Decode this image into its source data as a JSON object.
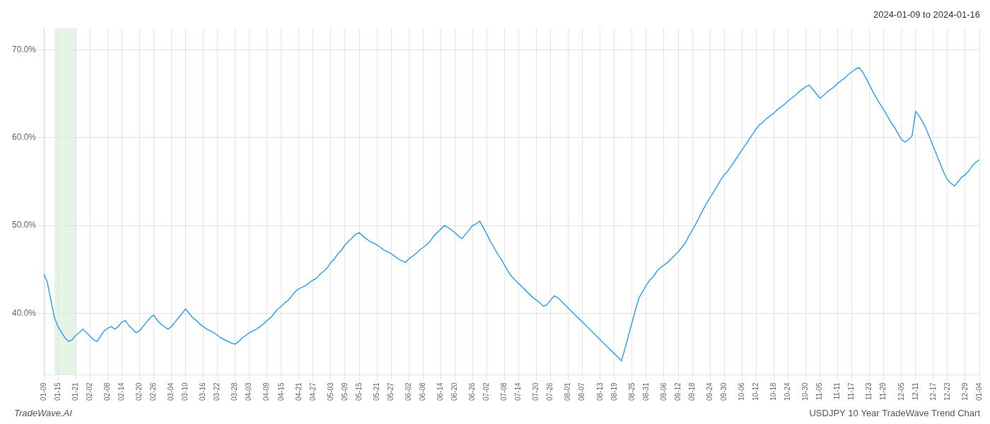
{
  "chart_data": {
    "type": "line",
    "title": "2024-01-09 to 2024-01-16",
    "annotations": [
      "TradeWave.AI",
      "USDJPY 10 Year TradeWave Trend Chart"
    ],
    "grid": true,
    "ylim": [
      0.33,
      0.725
    ],
    "yticks": [
      {
        "value": 0.4,
        "label": "40.0%"
      },
      {
        "value": 0.5,
        "label": "50.0%"
      },
      {
        "value": 0.6,
        "label": "60.0%"
      },
      {
        "value": 0.7,
        "label": "70.0%"
      }
    ],
    "highlight": {
      "start": 3,
      "end": 9,
      "color": "#d4ecd4"
    },
    "categories": [
      "01-09",
      null,
      null,
      null,
      "01-15",
      null,
      null,
      null,
      null,
      "01-21",
      null,
      null,
      null,
      "02-02",
      null,
      null,
      null,
      null,
      "02-08",
      null,
      null,
      null,
      "02-14",
      null,
      null,
      null,
      null,
      "02-20",
      null,
      null,
      null,
      "02-26",
      null,
      null,
      null,
      null,
      "03-04",
      null,
      null,
      null,
      "03-10",
      null,
      null,
      null,
      null,
      "03-16",
      null,
      null,
      null,
      "03-22",
      null,
      null,
      null,
      null,
      "03-28",
      null,
      null,
      null,
      "04-03",
      null,
      null,
      null,
      null,
      "04-09",
      null,
      null,
      null,
      "04-15",
      null,
      null,
      null,
      null,
      "04-21",
      null,
      null,
      null,
      "04-27",
      null,
      null,
      null,
      null,
      "05-03",
      null,
      null,
      null,
      "05-09",
      null,
      null,
      null,
      "05-15",
      null,
      null,
      null,
      null,
      "05-21",
      null,
      null,
      null,
      "05-27",
      null,
      null,
      null,
      null,
      "06-02",
      null,
      null,
      null,
      "06-08",
      null,
      null,
      null,
      null,
      "06-14",
      null,
      null,
      null,
      "06-20",
      null,
      null,
      null,
      null,
      "06-26",
      null,
      null,
      null,
      "07-02",
      null,
      null,
      null,
      null,
      "07-08",
      null,
      null,
      null,
      "07-14",
      null,
      null,
      null,
      null,
      "07-20",
      null,
      null,
      null,
      "07-26",
      null,
      null,
      null,
      null,
      "08-01",
      null,
      null,
      null,
      "08-07",
      null,
      null,
      null,
      null,
      "08-13",
      null,
      null,
      null,
      "08-19",
      null,
      null,
      null,
      null,
      "08-25",
      null,
      null,
      null,
      "08-31",
      null,
      null,
      null,
      null,
      "09-06",
      null,
      null,
      null,
      "09-12",
      null,
      null,
      null,
      "09-18",
      null,
      null,
      null,
      null,
      "09-24",
      null,
      null,
      null,
      "09-30",
      null,
      null,
      null,
      null,
      "10-06",
      null,
      null,
      null,
      "10-12",
      null,
      null,
      null,
      null,
      "10-18",
      null,
      null,
      null,
      "10-24",
      null,
      null,
      null,
      null,
      "10-30",
      null,
      null,
      null,
      "11-05",
      null,
      null,
      null,
      null,
      "11-11",
      null,
      null,
      null,
      "11-17",
      null,
      null,
      null,
      null,
      "11-23",
      null,
      null,
      null,
      "11-29",
      null,
      null,
      null,
      null,
      "12-05",
      null,
      null,
      null,
      "12-11",
      null,
      null,
      null,
      null,
      "12-17",
      null,
      null,
      null,
      "12-23",
      null,
      null,
      null,
      null,
      "12-29",
      null,
      null,
      null,
      "01-04"
    ],
    "values": [
      0.445,
      0.435,
      0.415,
      0.395,
      0.385,
      0.378,
      0.372,
      0.368,
      0.37,
      0.375,
      0.378,
      0.382,
      0.378,
      0.374,
      0.37,
      0.368,
      0.374,
      0.38,
      0.383,
      0.385,
      0.382,
      0.385,
      0.39,
      0.392,
      0.386,
      0.382,
      0.378,
      0.38,
      0.385,
      0.39,
      0.395,
      0.398,
      0.392,
      0.388,
      0.385,
      0.382,
      0.385,
      0.39,
      0.395,
      0.4,
      0.405,
      0.4,
      0.395,
      0.392,
      0.388,
      0.385,
      0.382,
      0.38,
      0.378,
      0.375,
      0.372,
      0.37,
      0.368,
      0.366,
      0.365,
      0.368,
      0.372,
      0.375,
      0.378,
      0.38,
      0.382,
      0.385,
      0.388,
      0.392,
      0.395,
      0.4,
      0.405,
      0.408,
      0.412,
      0.415,
      0.42,
      0.425,
      0.428,
      0.43,
      0.432,
      0.435,
      0.438,
      0.44,
      0.445,
      0.448,
      0.452,
      0.458,
      0.462,
      0.468,
      0.472,
      0.478,
      0.482,
      0.486,
      0.49,
      0.492,
      0.488,
      0.485,
      0.482,
      0.48,
      0.478,
      0.475,
      0.472,
      0.47,
      0.468,
      0.465,
      0.462,
      0.46,
      0.458,
      0.462,
      0.465,
      0.468,
      0.472,
      0.475,
      0.478,
      0.482,
      0.488,
      0.492,
      0.496,
      0.5,
      0.498,
      0.495,
      0.492,
      0.488,
      0.485,
      0.49,
      0.495,
      0.5,
      0.502,
      0.505,
      0.498,
      0.49,
      0.482,
      0.475,
      0.468,
      0.462,
      0.455,
      0.448,
      0.442,
      0.438,
      0.434,
      0.43,
      0.426,
      0.422,
      0.418,
      0.415,
      0.412,
      0.408,
      0.41,
      0.415,
      0.42,
      0.418,
      0.414,
      0.41,
      0.406,
      0.402,
      0.398,
      0.394,
      0.39,
      0.386,
      0.382,
      0.378,
      0.374,
      0.37,
      0.366,
      0.362,
      0.358,
      0.354,
      0.35,
      0.346,
      0.36,
      0.375,
      0.39,
      0.405,
      0.418,
      0.425,
      0.432,
      0.438,
      0.442,
      0.448,
      0.452,
      0.455,
      0.458,
      0.462,
      0.466,
      0.47,
      0.475,
      0.48,
      0.488,
      0.495,
      0.502,
      0.51,
      0.518,
      0.525,
      0.532,
      0.538,
      0.545,
      0.552,
      0.558,
      0.562,
      0.568,
      0.574,
      0.58,
      0.586,
      0.592,
      0.598,
      0.604,
      0.61,
      0.615,
      0.618,
      0.622,
      0.625,
      0.628,
      0.632,
      0.635,
      0.638,
      0.642,
      0.645,
      0.648,
      0.652,
      0.655,
      0.658,
      0.66,
      0.655,
      0.65,
      0.645,
      0.648,
      0.652,
      0.655,
      0.658,
      0.662,
      0.665,
      0.668,
      0.672,
      0.675,
      0.678,
      0.68,
      0.675,
      0.668,
      0.66,
      0.652,
      0.645,
      0.638,
      0.632,
      0.625,
      0.618,
      0.612,
      0.605,
      0.598,
      0.595,
      0.598,
      0.602,
      0.63,
      0.625,
      0.618,
      0.61,
      0.6,
      0.59,
      0.58,
      0.57,
      0.56,
      0.552,
      0.548,
      0.545,
      0.55,
      0.555,
      0.558,
      0.562,
      0.568,
      0.572,
      0.575
    ]
  }
}
